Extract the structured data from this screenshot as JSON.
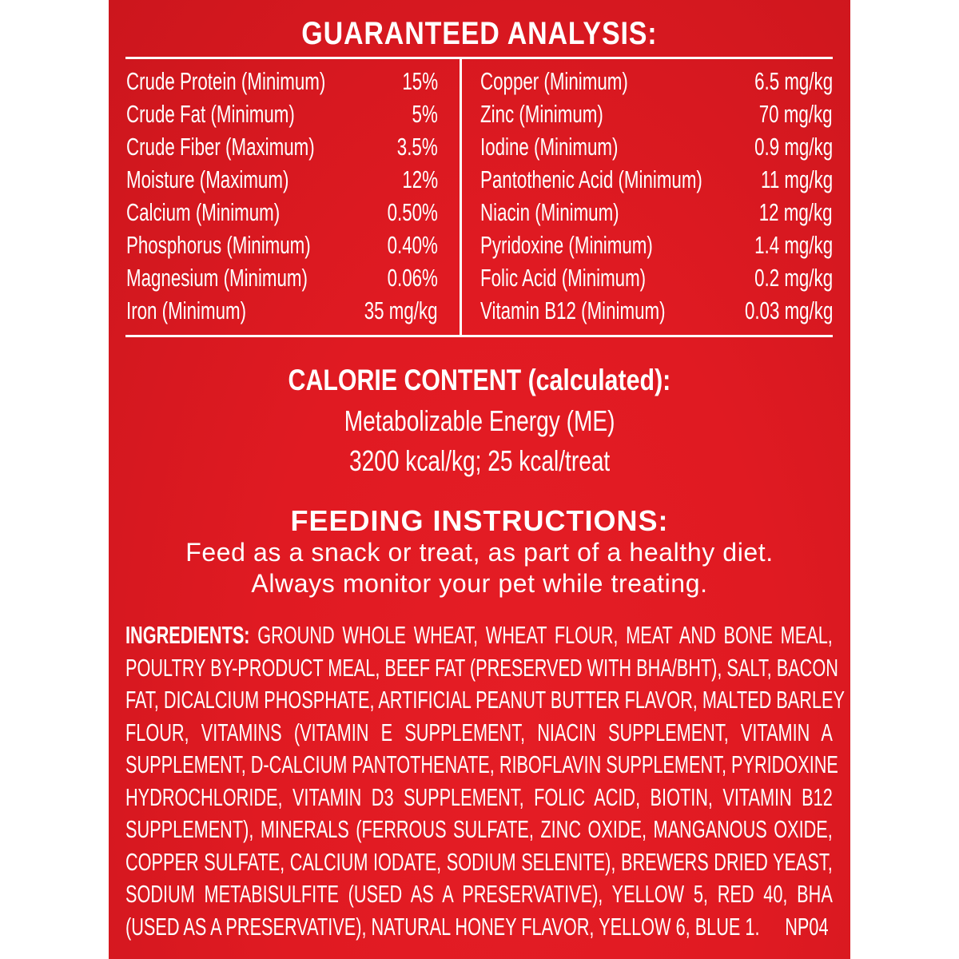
{
  "colors": {
    "panel": "#e01a22",
    "text": "#ffffff"
  },
  "analysis": {
    "title": "GUARANTEED ANALYSIS:",
    "left": [
      {
        "label": "Crude Protein (Minimum)",
        "value": "15%"
      },
      {
        "label": "Crude Fat (Minimum)",
        "value": "5%"
      },
      {
        "label": "Crude Fiber (Maximum)",
        "value": "3.5%"
      },
      {
        "label": "Moisture (Maximum)",
        "value": "12%"
      },
      {
        "label": "Calcium (Minimum)",
        "value": "0.50%"
      },
      {
        "label": "Phosphorus (Minimum)",
        "value": "0.40%"
      },
      {
        "label": "Magnesium (Minimum)",
        "value": "0.06%"
      },
      {
        "label": "Iron (Minimum)",
        "value": "35 mg/kg"
      }
    ],
    "right": [
      {
        "label": "Copper (Minimum)",
        "value": "6.5 mg/kg"
      },
      {
        "label": "Zinc (Minimum)",
        "value": "70 mg/kg"
      },
      {
        "label": "Iodine (Minimum)",
        "value": "0.9 mg/kg"
      },
      {
        "label": "Pantothenic Acid (Minimum)",
        "value": "11 mg/kg"
      },
      {
        "label": "Niacin (Minimum)",
        "value": "12 mg/kg"
      },
      {
        "label": "Pyridoxine (Minimum)",
        "value": "1.4 mg/kg"
      },
      {
        "label": "Folic Acid (Minimum)",
        "value": "0.2 mg/kg"
      },
      {
        "label": "Vitamin B12 (Minimum)",
        "value": "0.03 mg/kg"
      }
    ]
  },
  "calorie": {
    "title": "CALORIE CONTENT (calculated):",
    "line1": "Metabolizable Energy (ME)",
    "line2": "3200 kcal/kg; 25 kcal/treat"
  },
  "feeding": {
    "title": "FEEDING INSTRUCTIONS:",
    "line1": "Feed as a snack or treat, as part of a healthy diet.",
    "line2": "Always monitor your pet while treating."
  },
  "ingredients": {
    "label": "INGREDIENTS:",
    "lines": [
      "GROUND WHOLE WHEAT, WHEAT FLOUR, MEAT AND BONE MEAL,",
      "POULTRY BY-PRODUCT MEAL, BEEF FAT (PRESERVED WITH BHA/BHT), SALT, BACON",
      "FAT, DICALCIUM PHOSPHATE, ARTIFICIAL PEANUT BUTTER FLAVOR, MALTED BARLEY",
      "FLOUR, VITAMINS (VITAMIN E SUPPLEMENT, NIACIN SUPPLEMENT, VITAMIN A",
      "SUPPLEMENT, D-CALCIUM PANTOTHENATE, RIBOFLAVIN SUPPLEMENT, PYRIDOXINE",
      "HYDROCHLORIDE, VITAMIN D3 SUPPLEMENT, FOLIC ACID, BIOTIN, VITAMIN B12",
      "SUPPLEMENT), MINERALS (FERROUS SULFATE, ZINC OXIDE, MANGANOUS OXIDE,",
      "COPPER SULFATE, CALCIUM IODATE, SODIUM SELENITE), BREWERS DRIED YEAST,",
      "SODIUM METABISULFITE (USED AS A PRESERVATIVE), YELLOW 5, RED 40, BHA",
      "(USED AS A PRESERVATIVE), NATURAL HONEY FLAVOR, YELLOW 6, BLUE 1."
    ],
    "code": "NP04"
  }
}
